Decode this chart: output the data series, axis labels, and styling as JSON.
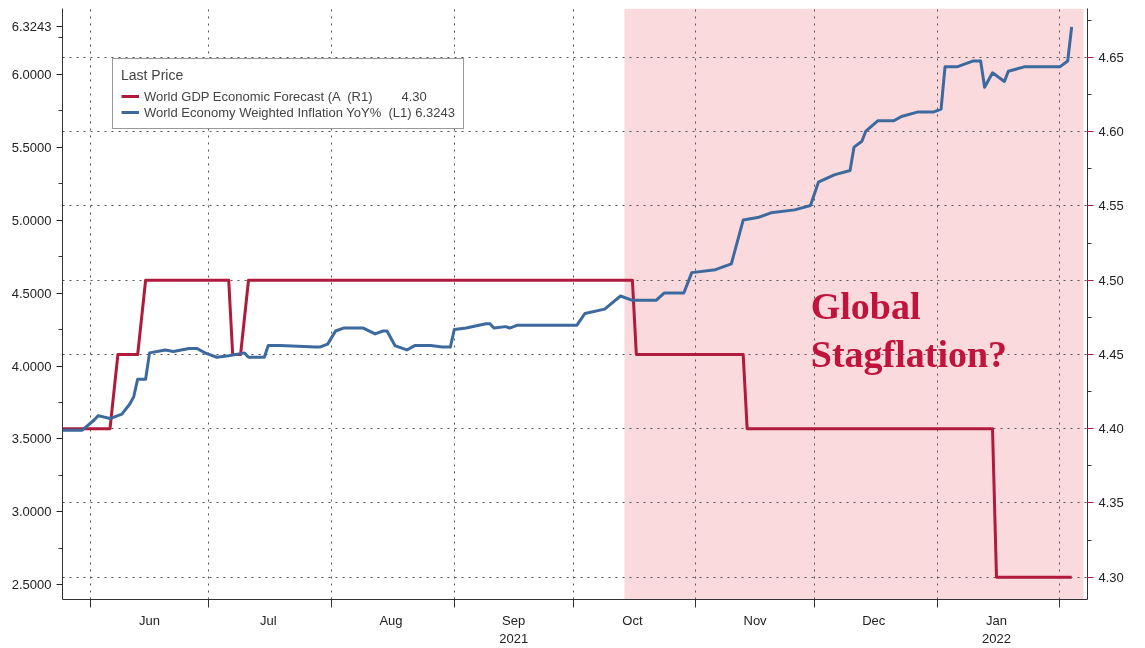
{
  "chart_data": {
    "type": "line",
    "xlim": [
      "2021-05-25",
      "2022-02-08"
    ],
    "xticks": [
      {
        "value": "2021-06-01",
        "label": null
      },
      {
        "value": "2021-07-01",
        "label": null
      },
      {
        "value": "2021-08-01",
        "label": null
      },
      {
        "value": "2021-09-01",
        "label": null
      },
      {
        "value": "2021-10-01",
        "label": null
      },
      {
        "value": "2021-11-01",
        "label": null
      },
      {
        "value": "2021-12-01",
        "label": null
      },
      {
        "value": "2022-01-01",
        "label": null
      },
      {
        "value": "2022-02-01",
        "label": null
      },
      {
        "value": "2021-06-16",
        "label": "Jun"
      },
      {
        "value": "2021-07-16",
        "label": "Jul"
      },
      {
        "value": "2021-08-16",
        "label": "Aug"
      },
      {
        "value": "2021-09-16",
        "label": "Sep\n2021"
      },
      {
        "value": "2021-10-16",
        "label": "Oct"
      },
      {
        "value": "2021-11-16",
        "label": "Nov"
      },
      {
        "value": "2021-12-16",
        "label": "Dec"
      },
      {
        "value": "2022-01-16",
        "label": "Jan\n2022"
      }
    ],
    "ylim": [
      2.4,
      6.45
    ],
    "yticks": [
      {
        "value": 2.5,
        "label": "2.5000"
      },
      {
        "value": 3.0,
        "label": "3.0000"
      },
      {
        "value": 3.5,
        "label": "3.5000"
      },
      {
        "value": 4.0,
        "label": "4.0000"
      },
      {
        "value": 4.5,
        "label": "4.5000"
      },
      {
        "value": 5.0,
        "label": "5.0000"
      },
      {
        "value": 5.5,
        "label": "5.5000"
      },
      {
        "value": 6.0,
        "label": "6.0000"
      },
      {
        "value": 6.3243,
        "label": "6.3243"
      },
      {
        "value": 2.75,
        "label": null
      },
      {
        "value": 3.25,
        "label": null
      },
      {
        "value": 3.75,
        "label": null
      },
      {
        "value": 4.25,
        "label": null
      },
      {
        "value": 4.75,
        "label": null
      },
      {
        "value": 5.25,
        "label": null
      },
      {
        "value": 5.75,
        "label": null
      },
      {
        "value": 6.25,
        "label": null
      }
    ],
    "y2lim": [
      4.285,
      4.683
    ],
    "y2ticks": [
      {
        "value": 4.3,
        "label": "4.30"
      },
      4.35,
      {
        "value": 4.4,
        "label": "4.40"
      },
      4.45,
      {
        "value": 4.5,
        "label": "4.50"
      },
      4.55,
      {
        "value": 4.6,
        "label": "4.60"
      },
      4.65,
      {
        "value": 4.325,
        "label": null
      },
      {
        "value": 4.375,
        "label": null
      },
      {
        "value": 4.425,
        "label": null
      },
      {
        "value": 4.475,
        "label": null
      },
      {
        "value": 4.525,
        "label": null
      },
      {
        "value": 4.575,
        "label": null
      },
      {
        "value": 4.625,
        "label": null
      },
      {
        "value": 4.675,
        "label": null
      }
    ],
    "grid": true,
    "legend": "top left",
    "legend_title": "Last Price",
    "bands": [
      {
        "axis": "x",
        "from": "2021-10-14",
        "to": "2022-02-07",
        "color": "#fadadd"
      }
    ],
    "annotations": [
      "Global Stagflation?"
    ],
    "series": [
      {
        "name": "World GDP Economic Forecast (A  (R1)        4.30",
        "color": "#b01a3c",
        "axis": "y2",
        "x": [
          "2021-05-25",
          "2021-06-06",
          "2021-06-08",
          "2021-06-13",
          "2021-06-15",
          "2021-07-06",
          "2021-07-07",
          "2021-07-09",
          "2021-07-11",
          "2021-10-16",
          "2021-10-17",
          "2021-11-13",
          "2021-11-14",
          "2022-01-15",
          "2022-01-16",
          "2022-02-04"
        ],
        "values": [
          4.4,
          4.4,
          4.45,
          4.45,
          4.5,
          4.5,
          4.45,
          4.45,
          4.5,
          4.5,
          4.45,
          4.45,
          4.4,
          4.4,
          4.3,
          4.3
        ]
      },
      {
        "name": "World Economy Weighted Inflation YoY%  (L1) 6.3243",
        "color": "#3d6a9e",
        "x": [
          "2021-05-25",
          "2021-05-30",
          "2021-06-02",
          "2021-06-03",
          "2021-06-06",
          "2021-06-09",
          "2021-06-11",
          "2021-06-12",
          "2021-06-13",
          "2021-06-15",
          "2021-06-16",
          "2021-06-20",
          "2021-06-22",
          "2021-06-26",
          "2021-06-28",
          "2021-06-30",
          "2021-07-03",
          "2021-07-06",
          "2021-07-10",
          "2021-07-11",
          "2021-07-15",
          "2021-07-16",
          "2021-07-19",
          "2021-07-28",
          "2021-07-29",
          "2021-07-31",
          "2021-08-02",
          "2021-08-04",
          "2021-08-09",
          "2021-08-12",
          "2021-08-14",
          "2021-08-15",
          "2021-08-17",
          "2021-08-20",
          "2021-08-22",
          "2021-08-26",
          "2021-08-29",
          "2021-08-31",
          "2021-09-01",
          "2021-09-04",
          "2021-09-09",
          "2021-09-10",
          "2021-09-11",
          "2021-09-14",
          "2021-09-15",
          "2021-09-17",
          "2021-10-02",
          "2021-10-04",
          "2021-10-09",
          "2021-10-13",
          "2021-10-16",
          "2021-10-22",
          "2021-10-24",
          "2021-10-29",
          "2021-10-31",
          "2021-11-06",
          "2021-11-10",
          "2021-11-13",
          "2021-11-17",
          "2021-11-20",
          "2021-11-26",
          "2021-11-30",
          "2021-12-02",
          "2021-12-06",
          "2021-12-10",
          "2021-12-11",
          "2021-12-13",
          "2021-12-14",
          "2021-12-17",
          "2021-12-21",
          "2021-12-23",
          "2021-12-27",
          "2021-12-31",
          "2022-01-02",
          "2022-01-03",
          "2022-01-06",
          "2022-01-10",
          "2022-01-12",
          "2022-01-13",
          "2022-01-15",
          "2022-01-18",
          "2022-01-19",
          "2022-01-23",
          "2022-02-01",
          "2022-02-03",
          "2022-02-04"
        ],
        "values": [
          3.56,
          3.56,
          3.63,
          3.66,
          3.64,
          3.67,
          3.74,
          3.79,
          3.91,
          3.91,
          4.09,
          4.11,
          4.1,
          4.12,
          4.12,
          4.09,
          4.06,
          4.07,
          4.09,
          4.06,
          4.06,
          4.14,
          4.14,
          4.13,
          4.13,
          4.15,
          4.24,
          4.26,
          4.26,
          4.22,
          4.24,
          4.24,
          4.14,
          4.11,
          4.14,
          4.14,
          4.13,
          4.13,
          4.25,
          4.26,
          4.29,
          4.29,
          4.26,
          4.27,
          4.26,
          4.28,
          4.28,
          4.36,
          4.39,
          4.48,
          4.45,
          4.45,
          4.5,
          4.5,
          4.64,
          4.66,
          4.7,
          5.0,
          5.02,
          5.05,
          5.07,
          5.1,
          5.26,
          5.31,
          5.34,
          5.5,
          5.54,
          5.61,
          5.68,
          5.68,
          5.71,
          5.74,
          5.74,
          5.76,
          6.05,
          6.05,
          6.09,
          6.09,
          5.91,
          6.01,
          5.95,
          6.02,
          6.05,
          6.05,
          6.09,
          6.3243
        ]
      }
    ]
  }
}
